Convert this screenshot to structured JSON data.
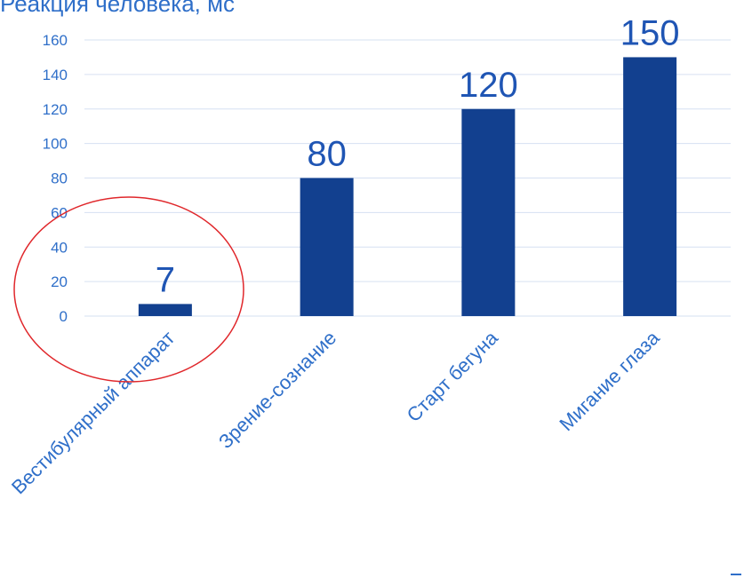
{
  "chart_data": {
    "type": "bar",
    "title": "Реакция человека, мс",
    "categories": [
      "Вестибулярный аппарат",
      "Зрение-сознание",
      "Старт бегуна",
      "Мигание глаза"
    ],
    "values": [
      7,
      80,
      120,
      150
    ],
    "data_labels": [
      "7",
      "80",
      "120",
      "150"
    ],
    "ylim": [
      0,
      160
    ],
    "yticks": [
      0,
      20,
      40,
      60,
      80,
      100,
      120,
      140,
      160
    ],
    "grid": true,
    "xlabel": "",
    "ylabel": "",
    "annotation": "red circle highlighting the first bar"
  },
  "colors": {
    "bar": "#12408f",
    "text": "#2f6fc9",
    "grid": "#d6e0f2",
    "circle": "#e0272b"
  }
}
